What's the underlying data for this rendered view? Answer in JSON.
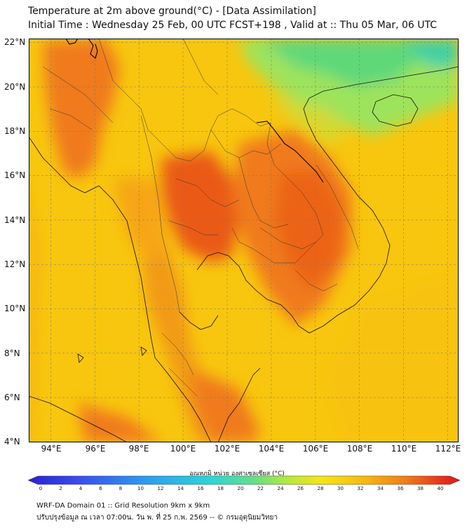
{
  "header": {
    "title": "Temperature at 2m above ground(°C) - [Data Assimilation]",
    "subtitle": "Initial Time : Wednesday 25 Feb, 00 UTC FCST+198 , Valid at :: Thu 05 Mar, 06 UTC"
  },
  "map": {
    "lat_labels": [
      "22°N",
      "20°N",
      "18°N",
      "16°N",
      "14°N",
      "12°N",
      "10°N",
      "8°N",
      "6°N",
      "4°N"
    ],
    "lon_labels": [
      "94°E",
      "96°E",
      "98°E",
      "100°E",
      "102°E",
      "104°E",
      "106°E",
      "108°E",
      "110°E",
      "112°E"
    ],
    "extent": {
      "lon_min": 93,
      "lon_max": 112.5,
      "lat_min": 4,
      "lat_max": 22.2
    },
    "colors": {
      "base": "#f8c60e",
      "hot": "#f07a1a",
      "hotter": "#ea5a17",
      "cool_green": "#5fd87a",
      "cyan": "#3fd0a5",
      "warm": "#f6a512"
    }
  },
  "colorbar": {
    "label": "อุณหภูมิ หน่วย องศาเซลเซียส (°C)",
    "ticks": [
      "0",
      "2",
      "4",
      "6",
      "8",
      "10",
      "12",
      "14",
      "16",
      "18",
      "20",
      "22",
      "24",
      "26",
      "28",
      "30",
      "32",
      "34",
      "36",
      "38",
      "40"
    ],
    "min": 0,
    "max": 40
  },
  "footer": {
    "line1": "WRF-DA Domain 01 :: Grid Resolution 9km x 9km",
    "line2": "ปรับปรุงข้อมูล ณ เวลา 07:00น. วัน พ. ที่ 25 ก.พ. 2569 -- © กรมอุตุนิยมวิทยา"
  }
}
